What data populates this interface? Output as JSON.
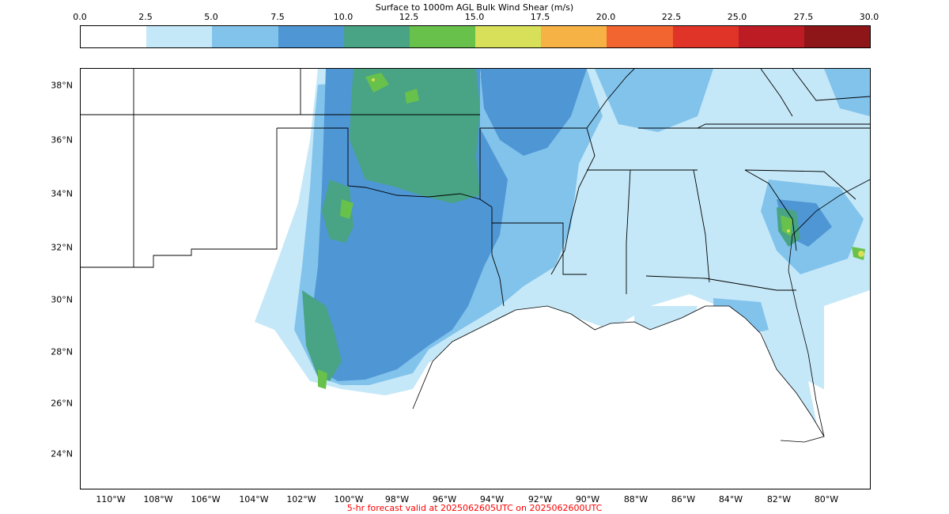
{
  "colorbar": {
    "title": "Surface to 1000m AGL Bulk Wind Shear (m/s)",
    "ticks": [
      "0.0",
      "2.5",
      "5.0",
      "7.5",
      "10.0",
      "12.5",
      "15.0",
      "17.5",
      "20.0",
      "22.5",
      "25.0",
      "27.5",
      "30.0"
    ],
    "colors": [
      "#ffffff",
      "#c5e8f8",
      "#82c3ec",
      "#4f96d4",
      "#48a485",
      "#68c14b",
      "#d8df59",
      "#f6b244",
      "#f26530",
      "#df3427",
      "#bd1c24",
      "#8e1518"
    ]
  },
  "map": {
    "lat_labels": [
      "38°N",
      "36°N",
      "34°N",
      "32°N",
      "30°N",
      "28°N",
      "26°N",
      "24°N"
    ],
    "lon_labels": [
      "110°W",
      "108°W",
      "106°W",
      "104°W",
      "102°W",
      "100°W",
      "98°W",
      "96°W",
      "94°W",
      "92°W",
      "90°W",
      "88°W",
      "86°W",
      "84°W",
      "82°W",
      "80°W"
    ]
  },
  "footer": "5-hr forecast valid at 2025062605UTC on 2025062600UTC"
}
